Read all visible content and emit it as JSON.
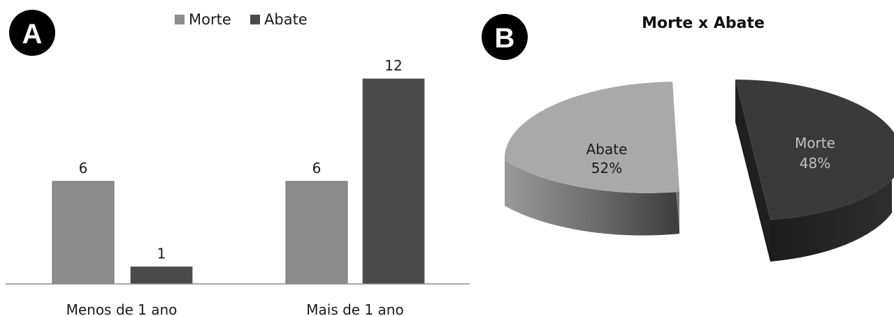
{
  "panels": {
    "a": {
      "badge": "A"
    },
    "b": {
      "badge": "B"
    }
  },
  "chart_data": [
    {
      "type": "bar",
      "categories": [
        "Menos de 1 ano",
        "Mais de 1 ano"
      ],
      "series": [
        {
          "name": "Morte",
          "values": [
            6,
            6
          ],
          "color": "#8c8c8c"
        },
        {
          "name": "Abate",
          "values": [
            1,
            12
          ],
          "color": "#4a4a4a"
        }
      ],
      "data_labels": [
        [
          "6",
          "6"
        ],
        [
          "1",
          "12"
        ]
      ],
      "title": "",
      "xlabel": "",
      "ylabel": "",
      "ylim": [
        0,
        12
      ],
      "grid": false,
      "legend": "top-center"
    },
    {
      "type": "pie",
      "title": "Morte x Abate",
      "slices": [
        {
          "name": "Abate",
          "value": 52,
          "label": "52%",
          "color": "#a9a9a9"
        },
        {
          "name": "Morte",
          "value": 48,
          "label": "48%",
          "color": "#3a3a3a"
        }
      ],
      "exploded": true,
      "three_d": true
    }
  ]
}
